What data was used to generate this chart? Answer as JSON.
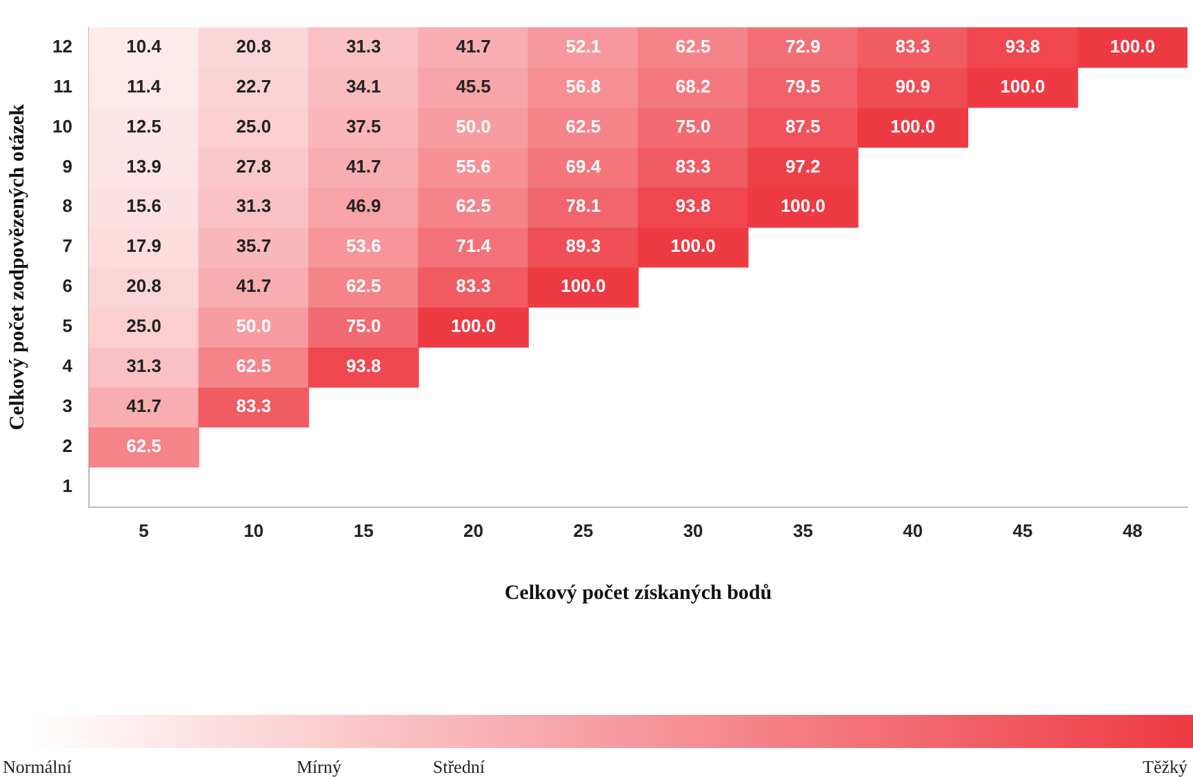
{
  "chart_data": {
    "type": "heatmap",
    "xlabel": "Celkový počet získaných bodů",
    "ylabel": "Celkový počet zodpovězených otázek",
    "categories": [
      "5",
      "10",
      "15",
      "20",
      "25",
      "30",
      "35",
      "40",
      "45",
      "48"
    ],
    "y_categories": [
      "12",
      "11",
      "10",
      "9",
      "8",
      "7",
      "6",
      "5",
      "4",
      "3",
      "2",
      "1"
    ],
    "cells": [
      [
        10.4,
        20.8,
        31.3,
        41.7,
        52.1,
        62.5,
        72.9,
        83.3,
        93.8,
        100.0
      ],
      [
        11.4,
        22.7,
        34.1,
        45.5,
        56.8,
        68.2,
        79.5,
        90.9,
        100.0,
        null
      ],
      [
        12.5,
        25.0,
        37.5,
        50.0,
        62.5,
        75.0,
        87.5,
        100.0,
        null,
        null
      ],
      [
        13.9,
        27.8,
        41.7,
        55.6,
        69.4,
        83.3,
        97.2,
        null,
        null,
        null
      ],
      [
        15.6,
        31.3,
        46.9,
        62.5,
        78.1,
        93.8,
        100.0,
        null,
        null,
        null
      ],
      [
        17.9,
        35.7,
        53.6,
        71.4,
        89.3,
        100.0,
        null,
        null,
        null,
        null
      ],
      [
        20.8,
        41.7,
        62.5,
        83.3,
        100.0,
        null,
        null,
        null,
        null,
        null
      ],
      [
        25.0,
        50.0,
        75.0,
        100.0,
        null,
        null,
        null,
        null,
        null,
        null
      ],
      [
        31.3,
        62.5,
        93.8,
        null,
        null,
        null,
        null,
        null,
        null,
        null
      ],
      [
        41.7,
        83.3,
        null,
        null,
        null,
        null,
        null,
        null,
        null,
        null
      ],
      [
        62.5,
        null,
        null,
        null,
        null,
        null,
        null,
        null,
        null,
        null
      ],
      [
        null,
        null,
        null,
        null,
        null,
        null,
        null,
        null,
        null,
        null
      ]
    ],
    "cell_labels": [
      [
        "10.4",
        "20.8",
        "31.3",
        "41.7",
        "52.1",
        "62.5",
        "72.9",
        "83.3",
        "93.8",
        "100.0"
      ],
      [
        "11.4",
        "22.7",
        "34.1",
        "45.5",
        "56.8",
        "68.2",
        "79.5",
        "90.9",
        "100.0",
        null
      ],
      [
        "12.5",
        "25.0",
        "37.5",
        "50.0",
        "62.5",
        "75.0",
        "87.5",
        "100.0",
        null,
        null
      ],
      [
        "13.9",
        "27.8",
        "41.7",
        "55.6",
        "69.4",
        "83.3",
        "97.2",
        null,
        null,
        null
      ],
      [
        "15.6",
        "31.3",
        "46.9",
        "62.5",
        "78.1",
        "93.8",
        "100.0",
        null,
        null,
        null
      ],
      [
        "17.9",
        "35.7",
        "53.6",
        "71.4",
        "89.3",
        "100.0",
        null,
        null,
        null,
        null
      ],
      [
        "20.8",
        "41.7",
        "62.5",
        "83.3",
        "100.0",
        null,
        null,
        null,
        null,
        null
      ],
      [
        "25.0",
        "50.0",
        "75.0",
        "100.0",
        null,
        null,
        null,
        null,
        null,
        null
      ],
      [
        "31.3",
        "62.5",
        "93.8",
        null,
        null,
        null,
        null,
        null,
        null,
        null
      ],
      [
        "41.7",
        "83.3",
        null,
        null,
        null,
        null,
        null,
        null,
        null,
        null
      ],
      [
        "62.5",
        null,
        null,
        null,
        null,
        null,
        null,
        null,
        null,
        null
      ],
      [
        null,
        null,
        null,
        null,
        null,
        null,
        null,
        null,
        null,
        null
      ]
    ],
    "clim": [
      0,
      100
    ],
    "cticks": [
      {
        "value": 0,
        "label": "Normální"
      },
      {
        "value": 25,
        "label": "Mírný"
      },
      {
        "value": 37,
        "label": "Střední"
      },
      {
        "value": 100,
        "label": "Těžký"
      }
    ],
    "grid": false,
    "legend": false
  }
}
